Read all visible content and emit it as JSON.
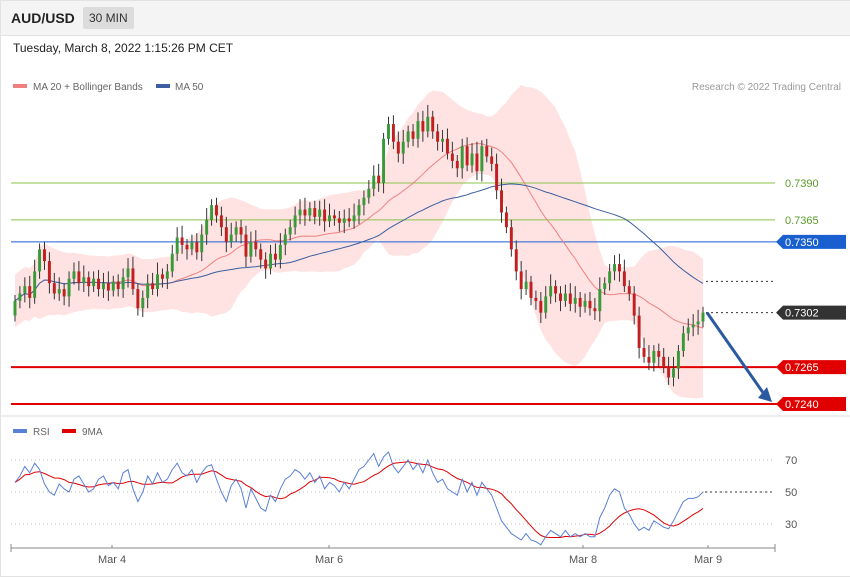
{
  "header": {
    "symbol": "AUD/USD",
    "timeframe": "30 MIN"
  },
  "datetime": "Tuesday, March 8, 2022 1:15:26 PM CET",
  "legend": {
    "ma20_label": "MA 20 + Bollinger Bands",
    "ma50_label": "MA 50",
    "ma20_color": "#f08080",
    "ma50_color": "#3b5fa0",
    "copyright": "Research © 2022 Trading Central"
  },
  "rsi_legend": {
    "rsi_label": "RSI",
    "ma_label": "9MA",
    "rsi_color": "#5a7fd6",
    "ma_color": "#e00000"
  },
  "chart_data": [
    {
      "type": "candlestick",
      "name": "price",
      "ylim": [
        0.722,
        0.746
      ],
      "x_ticks": [
        "Mar 4",
        "Mar 6",
        "Mar 8",
        "Mar 9"
      ],
      "last_price": 0.7302,
      "levels": [
        {
          "value": 0.739,
          "label": "0.7390",
          "kind": "resistance",
          "color": "#8bc34a"
        },
        {
          "value": 0.7365,
          "label": "0.7365",
          "kind": "resistance",
          "color": "#8bc34a"
        },
        {
          "value": 0.735,
          "label": "0.7350",
          "kind": "pivot",
          "color": "#1a5fd0"
        },
        {
          "value": 0.7302,
          "label": "0.7302",
          "kind": "last",
          "color": "#333333"
        },
        {
          "value": 0.7265,
          "label": "0.7265",
          "kind": "support",
          "color": "#e00000"
        },
        {
          "value": 0.724,
          "label": "0.7240",
          "kind": "support",
          "color": "#e00000"
        }
      ],
      "forecast_target": 0.724,
      "colors": {
        "up": "#3a9a3a",
        "down": "#c02020",
        "band": "#ffdede",
        "forecast": "#2b5aa0"
      }
    },
    {
      "type": "line",
      "name": "rsi",
      "ylim": [
        14,
        80
      ],
      "y_ticks": [
        "70",
        "50",
        "30"
      ],
      "gridlines": [
        70,
        50,
        30
      ]
    }
  ]
}
